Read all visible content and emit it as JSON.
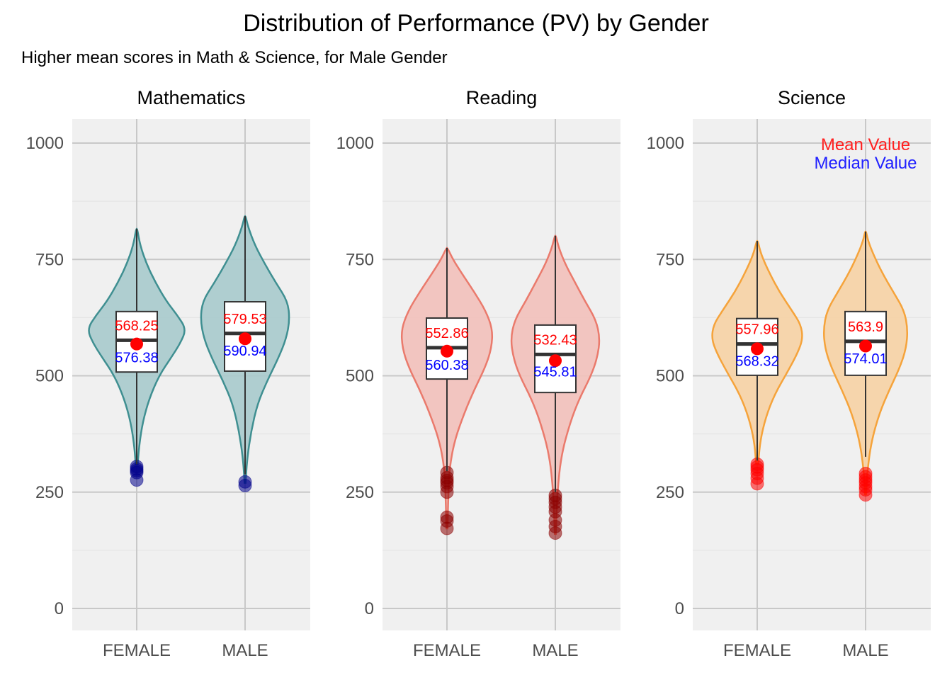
{
  "chart_data": {
    "type": "violin",
    "title": "Distribution of Performance (PV) by Gender",
    "subtitle": "Higher mean scores in Math & Science, for Male Gender",
    "xlabel": "",
    "ylabel": "",
    "ylim": [
      -50,
      1050
    ],
    "yticks": [
      0,
      250,
      500,
      750,
      1000
    ],
    "ytick_labels": [
      "0",
      "250",
      "500",
      "750",
      "1000"
    ],
    "grid": true,
    "categories": [
      "FEMALE",
      "MALE"
    ],
    "annotation": {
      "mean_label": "Mean Value",
      "median_label": "Median Value",
      "mean_color": "#ff2020",
      "median_color": "#2020ff",
      "panel": "Science",
      "placement": "top-right"
    },
    "panels": [
      {
        "name": "Mathematics",
        "fill": "#abcbcd",
        "stroke": "#3f8f91",
        "outlier_color": "#00008b",
        "groups": [
          {
            "category": "FEMALE",
            "mean": 568.25,
            "median": 576.38,
            "mean_label": "568.25",
            "median_label": "576.38",
            "q1": 508,
            "q3": 638,
            "whisker_low": 310,
            "whisker_high": 816,
            "outliers": [
              305,
              300,
              296,
              292,
              276
            ],
            "density": [
              [
                310,
                0.02
              ],
              [
                350,
                0.05
              ],
              [
                400,
                0.12
              ],
              [
                450,
                0.25
              ],
              [
                500,
                0.45
              ],
              [
                540,
                0.7
              ],
              [
                570,
                0.88
              ],
              [
                600,
                1.0
              ],
              [
                630,
                0.82
              ],
              [
                660,
                0.6
              ],
              [
                700,
                0.38
              ],
              [
                740,
                0.2
              ],
              [
                780,
                0.07
              ],
              [
                816,
                0.01
              ]
            ]
          },
          {
            "category": "MALE",
            "mean": 579.53,
            "median": 590.94,
            "mean_label": "579.53",
            "median_label": "590.94",
            "q1": 510,
            "q3": 659,
            "whisker_low": 288,
            "whisker_high": 843,
            "outliers": [
              272,
              264
            ],
            "density": [
              [
                270,
                0.01
              ],
              [
                320,
                0.04
              ],
              [
                380,
                0.12
              ],
              [
                440,
                0.25
              ],
              [
                490,
                0.45
              ],
              [
                540,
                0.68
              ],
              [
                580,
                0.83
              ],
              [
                620,
                0.9
              ],
              [
                660,
                0.86
              ],
              [
                700,
                0.62
              ],
              [
                740,
                0.4
              ],
              [
                780,
                0.2
              ],
              [
                820,
                0.06
              ],
              [
                843,
                0.01
              ]
            ]
          }
        ]
      },
      {
        "name": "Reading",
        "fill": "#f1c2bd",
        "stroke": "#ea7a6c",
        "outlier_color": "#8b0000",
        "groups": [
          {
            "category": "FEMALE",
            "mean": 552.86,
            "median": 560.38,
            "mean_label": "552.86",
            "median_label": "560.38",
            "q1": 493,
            "q3": 624,
            "whisker_low": 295,
            "whisker_high": 775,
            "outliers": [
              292,
              281,
              275,
              270,
              262,
              250,
              196,
              188,
              172
            ],
            "density": [
              [
                172,
                0.01
              ],
              [
                250,
                0.03
              ],
              [
                300,
                0.05
              ],
              [
                360,
                0.15
              ],
              [
                420,
                0.35
              ],
              [
                470,
                0.55
              ],
              [
                520,
                0.78
              ],
              [
                560,
                0.9
              ],
              [
                600,
                0.92
              ],
              [
                640,
                0.78
              ],
              [
                680,
                0.55
              ],
              [
                720,
                0.3
              ],
              [
                750,
                0.12
              ],
              [
                775,
                0.01
              ]
            ]
          },
          {
            "category": "MALE",
            "mean": 532.43,
            "median": 545.81,
            "mean_label": "532.43",
            "median_label": "545.81",
            "q1": 464,
            "q3": 609,
            "whisker_low": 250,
            "whisker_high": 801,
            "outliers": [
              243,
              236,
              228,
              218,
              208,
              190,
              176,
              162
            ],
            "density": [
              [
                160,
                0.01
              ],
              [
                250,
                0.04
              ],
              [
                330,
                0.12
              ],
              [
                400,
                0.3
              ],
              [
                450,
                0.48
              ],
              [
                500,
                0.72
              ],
              [
                540,
                0.85
              ],
              [
                580,
                0.9
              ],
              [
                620,
                0.82
              ],
              [
                660,
                0.6
              ],
              [
                700,
                0.4
              ],
              [
                740,
                0.2
              ],
              [
                775,
                0.07
              ],
              [
                801,
                0.01
              ]
            ]
          }
        ]
      },
      {
        "name": "Science",
        "fill": "#f5d3a8",
        "stroke": "#f5a33b",
        "outlier_color": "#ff0000",
        "groups": [
          {
            "category": "FEMALE",
            "mean": 557.96,
            "median": 568.32,
            "mean_label": "557.96",
            "median_label": "568.32",
            "q1": 501,
            "q3": 623,
            "whisker_low": 318,
            "whisker_high": 790,
            "outliers": [
              310,
              304,
              298,
              290,
              280,
              268
            ],
            "density": [
              [
                310,
                0.02
              ],
              [
                360,
                0.06
              ],
              [
                410,
                0.17
              ],
              [
                460,
                0.35
              ],
              [
                510,
                0.62
              ],
              [
                550,
                0.82
              ],
              [
                580,
                0.92
              ],
              [
                610,
                0.88
              ],
              [
                640,
                0.7
              ],
              [
                680,
                0.45
              ],
              [
                720,
                0.25
              ],
              [
                760,
                0.08
              ],
              [
                790,
                0.01
              ]
            ]
          },
          {
            "category": "MALE",
            "mean": 563.9,
            "median": 574.01,
            "mean_label": "563.9",
            "median_label": "574.01",
            "q1": 501,
            "q3": 638,
            "whisker_low": 326,
            "whisker_high": 810,
            "outliers": [
              290,
              283,
              276,
              270,
              262,
              255,
              244
            ],
            "density": [
              [
                245,
                0.01
              ],
              [
                300,
                0.04
              ],
              [
                360,
                0.12
              ],
              [
                420,
                0.28
              ],
              [
                470,
                0.48
              ],
              [
                520,
                0.7
              ],
              [
                560,
                0.82
              ],
              [
                600,
                0.85
              ],
              [
                640,
                0.78
              ],
              [
                680,
                0.56
              ],
              [
                720,
                0.34
              ],
              [
                760,
                0.16
              ],
              [
                790,
                0.05
              ],
              [
                810,
                0.01
              ]
            ]
          }
        ]
      }
    ]
  }
}
